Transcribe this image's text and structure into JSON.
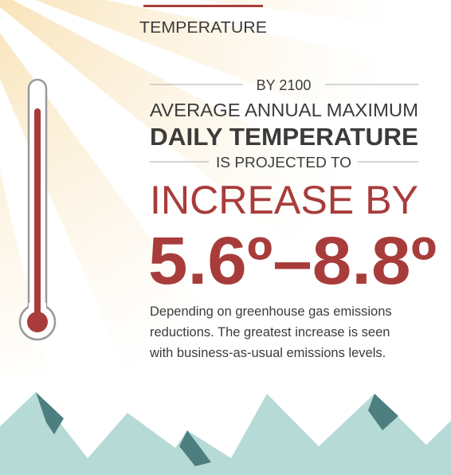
{
  "header": {
    "title": "TEMPERATURE"
  },
  "headline": {
    "kicker": "BY 2100",
    "line1": "AVERAGE ANNUAL MAXIMUM",
    "line2": "DAILY TEMPERATURE",
    "line3": "IS PROJECTED TO",
    "line4": "INCREASE BY",
    "range": "5.6º–8.8º"
  },
  "body": {
    "lines": [
      "Depending on greenhouse gas emissions",
      "reductions. The greatest increase is seen",
      "with business-as-usual emissions levels."
    ]
  }
}
